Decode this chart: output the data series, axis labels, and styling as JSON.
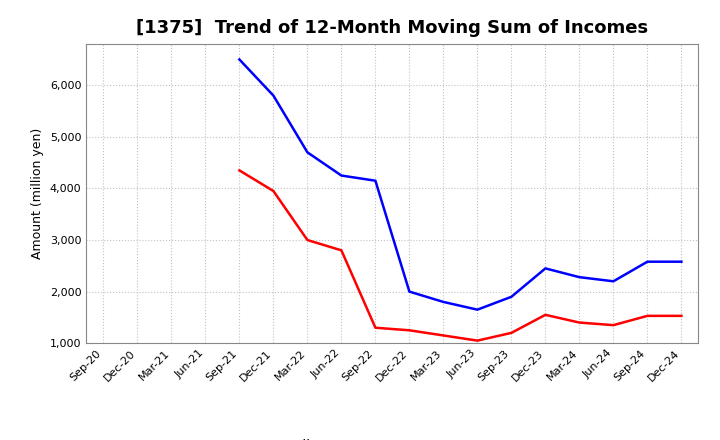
{
  "title": "[1375]  Trend of 12-Month Moving Sum of Incomes",
  "ylabel": "Amount (million yen)",
  "background_color": "#ffffff",
  "plot_bg_color": "#ffffff",
  "grid_color": "#bbbbbb",
  "x_labels": [
    "Sep-20",
    "Dec-20",
    "Mar-21",
    "Jun-21",
    "Sep-21",
    "Dec-21",
    "Mar-22",
    "Jun-22",
    "Sep-22",
    "Dec-22",
    "Mar-23",
    "Jun-23",
    "Sep-23",
    "Dec-23",
    "Mar-24",
    "Jun-24",
    "Sep-24",
    "Dec-24"
  ],
  "ordinary_income": [
    null,
    null,
    null,
    null,
    6500,
    5800,
    4700,
    4250,
    4150,
    2000,
    1800,
    1650,
    1900,
    2450,
    2280,
    2200,
    2580,
    2580
  ],
  "net_income": [
    null,
    null,
    null,
    null,
    4350,
    3950,
    3000,
    2800,
    1300,
    1250,
    1150,
    1050,
    1200,
    1550,
    1400,
    1350,
    1530,
    1530
  ],
  "ordinary_color": "#0000ff",
  "net_color": "#ff0000",
  "ylim": [
    1000,
    6800
  ],
  "yticks": [
    1000,
    2000,
    3000,
    4000,
    5000,
    6000
  ],
  "line_width": 1.8,
  "title_fontsize": 13,
  "axis_fontsize": 9,
  "tick_fontsize": 8,
  "legend_fontsize": 10
}
